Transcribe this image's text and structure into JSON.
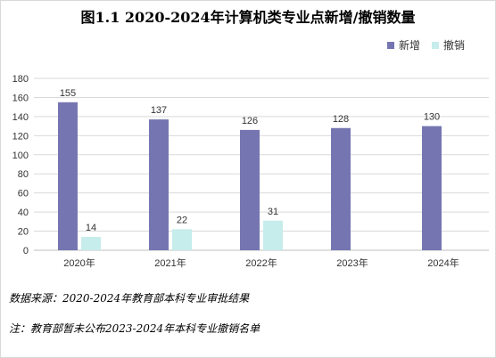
{
  "chart_data": {
    "type": "bar",
    "title": "图1.1 2020-2024年计算机类专业点新增/撤销数量",
    "categories": [
      "2020年",
      "2021年",
      "2022年",
      "2023年",
      "2024年"
    ],
    "series": [
      {
        "name": "新增",
        "values": [
          155,
          137,
          126,
          128,
          130
        ],
        "color": "#7576b1"
      },
      {
        "name": "撤销",
        "values": [
          14,
          22,
          31,
          null,
          null
        ],
        "color": "#c6ecec"
      }
    ],
    "yticks": [
      0,
      20,
      40,
      60,
      80,
      100,
      120,
      140,
      160,
      180
    ],
    "ylim": [
      0,
      180
    ],
    "grid": true,
    "legend_position": "top-right"
  },
  "notes": {
    "source": "数据来源：2020-2024年教育部本科专业审批结果",
    "note": "注：教育部暂未公布2023-2024年本科专业撤销名单"
  }
}
